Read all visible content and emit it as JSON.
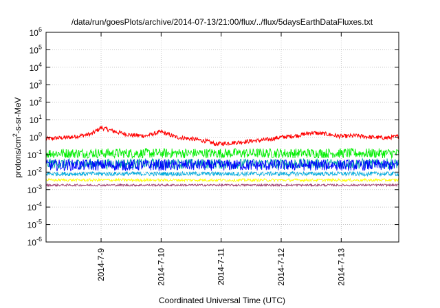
{
  "chart_data": {
    "type": "line",
    "title": "/data/run/goesPlots/archive/2014-07-13/21:00/flux/../flux/5daysEarthDataFluxes.txt",
    "xlabel": "Coordinated Universal Time (UTC)",
    "ylabel": "protons/cm²-s-sr-MeV",
    "yscale": "log",
    "ylim": [
      1e-06,
      1000000.0
    ],
    "y_ticks": [
      {
        "exp": -6,
        "label": "10",
        "sup": "-6"
      },
      {
        "exp": -5,
        "label": "10",
        "sup": "-5"
      },
      {
        "exp": -4,
        "label": "10",
        "sup": "-4"
      },
      {
        "exp": -3,
        "label": "10",
        "sup": "-3"
      },
      {
        "exp": -2,
        "label": "10",
        "sup": "-2"
      },
      {
        "exp": -1,
        "label": "10",
        "sup": "-1"
      },
      {
        "exp": 0,
        "label": "10",
        "sup": "0"
      },
      {
        "exp": 1,
        "label": "10",
        "sup": "1"
      },
      {
        "exp": 2,
        "label": "10",
        "sup": "2"
      },
      {
        "exp": 3,
        "label": "10",
        "sup": "3"
      },
      {
        "exp": 4,
        "label": "10",
        "sup": "4"
      },
      {
        "exp": 5,
        "label": "10",
        "sup": "5"
      },
      {
        "exp": 6,
        "label": "10",
        "sup": "6"
      }
    ],
    "xlim": [
      "2014-07-08 02:00",
      "2014-07-13 23:00"
    ],
    "x_ticks": [
      {
        "value": "2014-07-09",
        "label": "2014-7-9"
      },
      {
        "value": "2014-07-10",
        "label": "2014-7-10"
      },
      {
        "value": "2014-07-11",
        "label": "2014-7-11"
      },
      {
        "value": "2014-07-12",
        "label": "2014-7-12"
      },
      {
        "value": "2014-07-13",
        "label": "2014-7-13"
      }
    ],
    "grid": true,
    "series": [
      {
        "color": "#ff0000",
        "x": [
          "2014-07-08 02:00",
          "2014-07-08 12:00",
          "2014-07-08 20:00",
          "2014-07-09 00:00",
          "2014-07-09 06:00",
          "2014-07-09 12:00",
          "2014-07-09 18:00",
          "2014-07-10 00:00",
          "2014-07-10 06:00",
          "2014-07-10 12:00",
          "2014-07-10 18:00",
          "2014-07-10 22:00",
          "2014-07-11 06:00",
          "2014-07-11 12:00",
          "2014-07-11 18:00",
          "2014-07-12 00:00",
          "2014-07-12 06:00",
          "2014-07-12 12:00",
          "2014-07-12 18:00",
          "2014-07-13 00:00",
          "2014-07-13 06:00",
          "2014-07-13 12:00",
          "2014-07-13 18:00",
          "2014-07-13 23:00"
        ],
        "y": [
          0.8,
          1.0,
          1.5,
          3.5,
          2.0,
          1.3,
          1.2,
          2.0,
          1.0,
          0.8,
          0.6,
          0.4,
          0.5,
          0.6,
          0.7,
          1.0,
          1.2,
          1.8,
          1.5,
          1.1,
          1.2,
          1.0,
          0.9,
          1.1
        ],
        "noise": 0.12
      },
      {
        "color": "#00ee00",
        "level": 0.12,
        "noise": 0.28
      },
      {
        "color": "#00aaaa",
        "level": 0.03,
        "noise": 0.3
      },
      {
        "color": "#0000ff",
        "level": 0.025,
        "noise": 0.32
      },
      {
        "color": "#00aadd",
        "level": 0.008,
        "noise": 0.12
      },
      {
        "color": "#ffff00",
        "level": 0.0035,
        "noise": 0.08
      },
      {
        "color": "#993366",
        "level": 0.0018,
        "noise": 0.06
      }
    ]
  }
}
